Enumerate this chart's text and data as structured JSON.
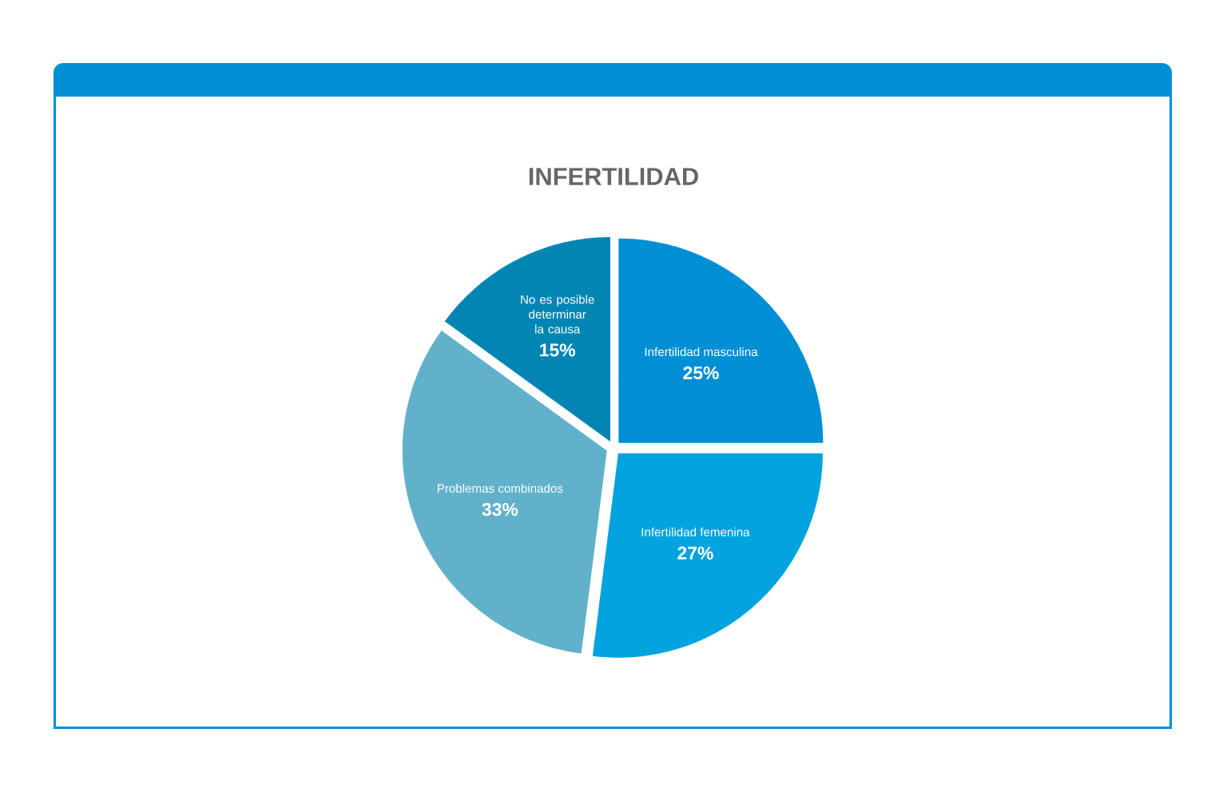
{
  "chart_data": {
    "type": "pie",
    "title": "INFERTILIDAD",
    "categories": [
      "Infertilidad masculina",
      "Infertilidad femenina",
      "Problemas combinados",
      "No es posible determinar la causa"
    ],
    "values": [
      25,
      27,
      33,
      15
    ],
    "colors": [
      "#008fd5",
      "#02a3de",
      "#62b1cb",
      "#0385b4"
    ],
    "value_labels": [
      "25%",
      "27%",
      "33%",
      "15%"
    ]
  }
}
